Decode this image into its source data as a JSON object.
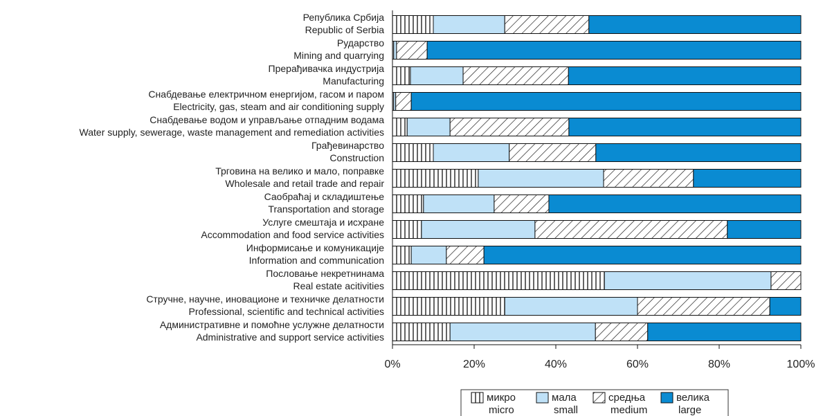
{
  "chart_data": {
    "type": "stacked-barh",
    "categories": [
      [
        "Република Србија",
        "Republic of Serbia"
      ],
      [
        "Рударство",
        "Mining and quarrying"
      ],
      [
        "Прерађивачка индустрија",
        "Manufacturing"
      ],
      [
        "Снабдевање електричном енергијом, гасом и паром",
        "Electricity, gas, steam and air conditioning supply"
      ],
      [
        "Снабдевање водом и управљање отпадним водама",
        "Water supply, sewerage, waste management and remediation activities"
      ],
      [
        "Грађевинарство",
        "Construction"
      ],
      [
        "Трговина на велико и мало, поправке",
        "Wholesale and retail trade and repair"
      ],
      [
        "Саобраћај и складиштење",
        "Transportation and  storage"
      ],
      [
        "Услуге смештаја и исхране",
        "Accommodation and food service activities"
      ],
      [
        "Информисање и комуникације",
        "Information and communication"
      ],
      [
        "Пословање некретнинама",
        "Real estate acitivities"
      ],
      [
        "Стручне, научне, иновационе и техничке делатности",
        "Professional, scientific and technical activities"
      ],
      [
        "Административне и помоћне услужне делатности",
        "Administrative and support service activities"
      ]
    ],
    "series": [
      {
        "name": [
          "микро",
          "micro"
        ],
        "color": "#ffffff",
        "hatch": "vertical",
        "values": [
          10.0,
          0.3,
          4.4,
          0.3,
          3.6,
          10.0,
          21.0,
          7.6,
          7.1,
          4.6,
          51.9,
          27.5,
          14.1
        ]
      },
      {
        "name": [
          "мала",
          "small"
        ],
        "color": "#bfe1f7",
        "values": [
          17.5,
          0.7,
          12.9,
          0.5,
          10.5,
          18.6,
          30.7,
          17.3,
          27.8,
          8.6,
          40.8,
          32.5,
          35.6
        ]
      },
      {
        "name": [
          "средња",
          "medium"
        ],
        "color": "#ffffff",
        "hatch": "diagonal",
        "values": [
          20.6,
          7.5,
          25.8,
          3.8,
          29.1,
          21.2,
          22.0,
          13.4,
          47.1,
          9.2,
          7.3,
          32.4,
          12.8
        ]
      },
      {
        "name": [
          "велика",
          "large"
        ],
        "color": "#0a8bd2",
        "values": [
          51.9,
          91.5,
          56.9,
          95.4,
          56.8,
          50.2,
          26.3,
          61.7,
          18.0,
          77.6,
          0,
          7.6,
          37.5
        ]
      }
    ],
    "xlim": [
      0,
      100
    ],
    "xticks": [
      {
        "value": 0,
        "label": "0%"
      },
      {
        "value": 20,
        "label": "20%"
      },
      {
        "value": 40,
        "label": "40%"
      },
      {
        "value": 60,
        "label": "60%"
      },
      {
        "value": 80,
        "label": "80%"
      },
      {
        "value": 100,
        "label": "100%"
      }
    ]
  }
}
